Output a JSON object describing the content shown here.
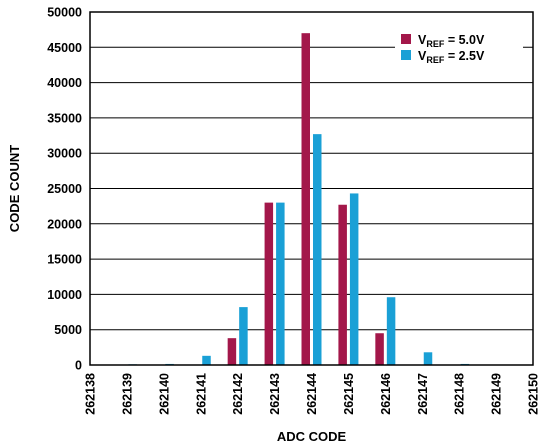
{
  "chart_data": {
    "type": "bar",
    "title": "",
    "xlabel": "ADC CODE",
    "ylabel": "CODE COUNT",
    "categories": [
      "262138",
      "262139",
      "262140",
      "262141",
      "262142",
      "262143",
      "262144",
      "262145",
      "262146",
      "262147",
      "262148",
      "262149",
      "262150"
    ],
    "y_ticks": [
      "0",
      "5000",
      "10000",
      "15000",
      "20000",
      "25000",
      "30000",
      "35000",
      "40000",
      "45000",
      "50000"
    ],
    "ylim": [
      0,
      50000
    ],
    "grid": "horizontal",
    "legend_position": "top-right",
    "series": [
      {
        "name_main": "V",
        "name_sub": "REF",
        "name_rest": " = 5.0V",
        "color": "#a3174a",
        "values": [
          0,
          0,
          0,
          0,
          3800,
          23000,
          47000,
          22700,
          4500,
          0,
          0,
          0,
          null
        ]
      },
      {
        "name_main": "V",
        "name_sub": "REF",
        "name_rest": " = 2.5V",
        "color": "#1aa0d6",
        "values": [
          0,
          100,
          150,
          1300,
          8200,
          23000,
          32700,
          24300,
          9600,
          1800,
          150,
          50,
          null
        ]
      }
    ]
  }
}
